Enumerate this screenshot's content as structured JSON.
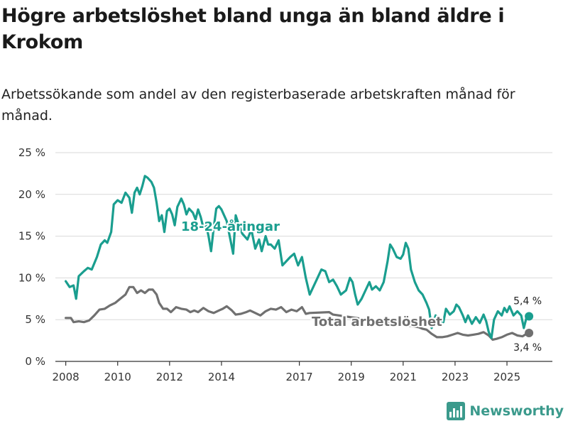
{
  "chart_data": {
    "type": "line",
    "title": "Högre arbetslöshet bland unga än bland äldre i Krokom",
    "subtitle": "Arbetssökande som andel av den registerbaserade arbetskraften månad för månad.",
    "ylim": [
      0,
      25
    ],
    "y_ticks": [
      {
        "value": 0,
        "label": "0 %"
      },
      {
        "value": 5,
        "label": "5 %"
      },
      {
        "value": 10,
        "label": "10 %"
      },
      {
        "value": 15,
        "label": "15 %"
      },
      {
        "value": 20,
        "label": "20 %"
      },
      {
        "value": 25,
        "label": "25 %"
      }
    ],
    "xlim": [
      2007.6,
      2026.75
    ],
    "x_ticks": [
      {
        "value": 2008,
        "label": "2008"
      },
      {
        "value": 2010,
        "label": "2010"
      },
      {
        "value": 2012,
        "label": "2012"
      },
      {
        "value": 2014,
        "label": "2014"
      },
      {
        "value": 2017,
        "label": "2017"
      },
      {
        "value": 2019,
        "label": "2019"
      },
      {
        "value": 2021,
        "label": "2021"
      },
      {
        "value": 2023,
        "label": "2023"
      },
      {
        "value": 2025,
        "label": "2025"
      }
    ],
    "series": [
      {
        "name": "18-24-åringar",
        "color": "#1a9e8f",
        "label": "18-24-åringar",
        "end_label": "5,4 %",
        "points": [
          [
            2008.0,
            9.6
          ],
          [
            2008.15,
            8.9
          ],
          [
            2008.3,
            9.1
          ],
          [
            2008.4,
            7.5
          ],
          [
            2008.5,
            10.2
          ],
          [
            2008.7,
            10.8
          ],
          [
            2008.85,
            11.2
          ],
          [
            2009.0,
            11.0
          ],
          [
            2009.2,
            12.5
          ],
          [
            2009.35,
            14.0
          ],
          [
            2009.5,
            14.5
          ],
          [
            2009.6,
            14.2
          ],
          [
            2009.75,
            15.5
          ],
          [
            2009.85,
            18.8
          ],
          [
            2010.0,
            19.3
          ],
          [
            2010.15,
            19.0
          ],
          [
            2010.3,
            20.2
          ],
          [
            2010.45,
            19.6
          ],
          [
            2010.55,
            17.8
          ],
          [
            2010.65,
            20.2
          ],
          [
            2010.75,
            20.8
          ],
          [
            2010.85,
            20.0
          ],
          [
            2010.95,
            21.0
          ],
          [
            2011.05,
            22.2
          ],
          [
            2011.15,
            22.0
          ],
          [
            2011.3,
            21.5
          ],
          [
            2011.4,
            20.8
          ],
          [
            2011.5,
            19.0
          ],
          [
            2011.6,
            16.8
          ],
          [
            2011.7,
            17.5
          ],
          [
            2011.8,
            15.5
          ],
          [
            2011.9,
            18.0
          ],
          [
            2012.0,
            18.3
          ],
          [
            2012.1,
            17.6
          ],
          [
            2012.2,
            16.3
          ],
          [
            2012.3,
            18.5
          ],
          [
            2012.45,
            19.5
          ],
          [
            2012.55,
            18.8
          ],
          [
            2012.65,
            17.6
          ],
          [
            2012.75,
            18.3
          ],
          [
            2012.9,
            17.8
          ],
          [
            2013.0,
            17.0
          ],
          [
            2013.1,
            18.2
          ],
          [
            2013.2,
            17.3
          ],
          [
            2013.3,
            16.0
          ],
          [
            2013.4,
            16.5
          ],
          [
            2013.5,
            15.0
          ],
          [
            2013.6,
            13.2
          ],
          [
            2013.7,
            16.0
          ],
          [
            2013.8,
            18.3
          ],
          [
            2013.9,
            18.6
          ],
          [
            2014.0,
            18.2
          ],
          [
            2014.1,
            17.5
          ],
          [
            2014.2,
            16.8
          ],
          [
            2014.35,
            14.5
          ],
          [
            2014.45,
            12.9
          ],
          [
            2014.55,
            17.5
          ],
          [
            2014.65,
            16.5
          ],
          [
            2014.8,
            15.3
          ],
          [
            2015.0,
            14.6
          ],
          [
            2015.15,
            15.8
          ],
          [
            2015.3,
            13.5
          ],
          [
            2015.45,
            14.6
          ],
          [
            2015.55,
            13.2
          ],
          [
            2015.7,
            15.0
          ],
          [
            2015.8,
            14.0
          ],
          [
            2015.9,
            14.0
          ],
          [
            2016.05,
            13.5
          ],
          [
            2016.2,
            14.5
          ],
          [
            2016.35,
            11.5
          ],
          [
            2016.5,
            12.0
          ],
          [
            2016.65,
            12.5
          ],
          [
            2016.8,
            12.9
          ],
          [
            2016.95,
            11.5
          ],
          [
            2017.1,
            12.5
          ],
          [
            2017.25,
            10.0
          ],
          [
            2017.4,
            8.0
          ],
          [
            2017.55,
            9.0
          ],
          [
            2017.7,
            10.0
          ],
          [
            2017.85,
            11.0
          ],
          [
            2018.0,
            10.8
          ],
          [
            2018.15,
            9.5
          ],
          [
            2018.3,
            9.8
          ],
          [
            2018.45,
            9.0
          ],
          [
            2018.6,
            8.0
          ],
          [
            2018.8,
            8.5
          ],
          [
            2018.95,
            10.0
          ],
          [
            2019.05,
            9.5
          ],
          [
            2019.15,
            8.0
          ],
          [
            2019.25,
            6.8
          ],
          [
            2019.4,
            7.5
          ],
          [
            2019.55,
            8.5
          ],
          [
            2019.7,
            9.5
          ],
          [
            2019.8,
            8.6
          ],
          [
            2019.95,
            9.0
          ],
          [
            2020.1,
            8.5
          ],
          [
            2020.25,
            9.5
          ],
          [
            2020.4,
            12.0
          ],
          [
            2020.5,
            14.0
          ],
          [
            2020.6,
            13.5
          ],
          [
            2020.75,
            12.5
          ],
          [
            2020.9,
            12.3
          ],
          [
            2021.0,
            12.8
          ],
          [
            2021.1,
            14.2
          ],
          [
            2021.2,
            13.5
          ],
          [
            2021.3,
            11.0
          ],
          [
            2021.45,
            9.5
          ],
          [
            2021.6,
            8.5
          ],
          [
            2021.75,
            8.0
          ],
          [
            2021.9,
            7.0
          ],
          [
            2022.0,
            6.2
          ],
          [
            2022.1,
            4.0
          ],
          [
            2022.25,
            5.5
          ],
          [
            2022.4,
            5.0
          ],
          [
            2022.55,
            4.7
          ],
          [
            2022.65,
            6.3
          ],
          [
            2022.8,
            5.6
          ],
          [
            2022.95,
            6.0
          ],
          [
            2023.05,
            6.8
          ],
          [
            2023.15,
            6.5
          ],
          [
            2023.3,
            5.5
          ],
          [
            2023.4,
            4.7
          ],
          [
            2023.5,
            5.5
          ],
          [
            2023.65,
            4.5
          ],
          [
            2023.8,
            5.3
          ],
          [
            2023.95,
            4.6
          ],
          [
            2024.1,
            5.6
          ],
          [
            2024.2,
            4.8
          ],
          [
            2024.3,
            3.5
          ],
          [
            2024.4,
            2.8
          ],
          [
            2024.5,
            5.0
          ],
          [
            2024.65,
            6.0
          ],
          [
            2024.8,
            5.5
          ],
          [
            2024.9,
            6.4
          ],
          [
            2025.0,
            5.9
          ],
          [
            2025.1,
            6.6
          ],
          [
            2025.25,
            5.5
          ],
          [
            2025.4,
            6.0
          ],
          [
            2025.55,
            5.5
          ],
          [
            2025.65,
            4.0
          ],
          [
            2025.75,
            5.2
          ],
          [
            2025.85,
            5.4
          ]
        ]
      },
      {
        "name": "Total arbetslöshet",
        "color": "#707070",
        "label": "Total arbetslöshet",
        "end_label": "3,4 %",
        "points": [
          [
            2008.0,
            5.2
          ],
          [
            2008.2,
            5.2
          ],
          [
            2008.3,
            4.7
          ],
          [
            2008.5,
            4.8
          ],
          [
            2008.7,
            4.7
          ],
          [
            2008.9,
            4.9
          ],
          [
            2009.1,
            5.5
          ],
          [
            2009.3,
            6.2
          ],
          [
            2009.5,
            6.3
          ],
          [
            2009.7,
            6.7
          ],
          [
            2009.9,
            7.0
          ],
          [
            2010.1,
            7.5
          ],
          [
            2010.3,
            8.0
          ],
          [
            2010.45,
            8.9
          ],
          [
            2010.6,
            8.9
          ],
          [
            2010.75,
            8.2
          ],
          [
            2010.9,
            8.5
          ],
          [
            2011.05,
            8.2
          ],
          [
            2011.2,
            8.6
          ],
          [
            2011.35,
            8.6
          ],
          [
            2011.5,
            8.0
          ],
          [
            2011.6,
            7.0
          ],
          [
            2011.75,
            6.3
          ],
          [
            2011.9,
            6.3
          ],
          [
            2012.05,
            5.9
          ],
          [
            2012.25,
            6.5
          ],
          [
            2012.45,
            6.3
          ],
          [
            2012.65,
            6.2
          ],
          [
            2012.8,
            5.9
          ],
          [
            2012.95,
            6.1
          ],
          [
            2013.1,
            5.9
          ],
          [
            2013.3,
            6.4
          ],
          [
            2013.5,
            6.0
          ],
          [
            2013.7,
            5.8
          ],
          [
            2013.9,
            6.1
          ],
          [
            2014.05,
            6.3
          ],
          [
            2014.2,
            6.6
          ],
          [
            2014.4,
            6.1
          ],
          [
            2014.55,
            5.6
          ],
          [
            2014.75,
            5.7
          ],
          [
            2014.95,
            5.9
          ],
          [
            2015.1,
            6.1
          ],
          [
            2015.3,
            5.8
          ],
          [
            2015.5,
            5.5
          ],
          [
            2015.7,
            6.0
          ],
          [
            2015.9,
            6.3
          ],
          [
            2016.1,
            6.2
          ],
          [
            2016.3,
            6.5
          ],
          [
            2016.5,
            5.9
          ],
          [
            2016.7,
            6.2
          ],
          [
            2016.9,
            6.0
          ],
          [
            2017.1,
            6.5
          ],
          [
            2017.25,
            5.7
          ],
          [
            2017.4,
            5.8
          ],
          [
            2018.15,
            5.9
          ],
          [
            2018.3,
            5.6
          ],
          [
            2021.6,
            4.1
          ],
          [
            2021.75,
            3.9
          ],
          [
            2021.9,
            3.8
          ],
          [
            2022.1,
            3.3
          ],
          [
            2022.3,
            2.9
          ],
          [
            2022.5,
            2.9
          ],
          [
            2022.7,
            3.0
          ],
          [
            2022.9,
            3.2
          ],
          [
            2023.1,
            3.4
          ],
          [
            2023.3,
            3.2
          ],
          [
            2023.5,
            3.1
          ],
          [
            2023.7,
            3.2
          ],
          [
            2023.9,
            3.3
          ],
          [
            2024.1,
            3.5
          ],
          [
            2024.3,
            3.1
          ],
          [
            2024.45,
            2.6
          ],
          [
            2024.6,
            2.7
          ],
          [
            2024.8,
            2.9
          ],
          [
            2025.0,
            3.2
          ],
          [
            2025.2,
            3.4
          ],
          [
            2025.4,
            3.1
          ],
          [
            2025.6,
            3.0
          ],
          [
            2025.75,
            3.3
          ],
          [
            2025.85,
            3.4
          ]
        ]
      }
    ]
  },
  "brand": {
    "name": "Newsworthy"
  }
}
